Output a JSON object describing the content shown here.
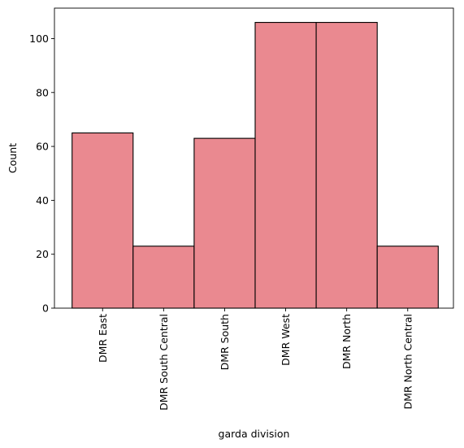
{
  "chart_data": {
    "type": "bar",
    "categories": [
      "DMR East",
      "DMR South Central",
      "DMR South",
      "DMR West",
      "DMR North",
      "DMR North Central"
    ],
    "values": [
      65,
      23,
      63,
      106,
      106,
      23
    ],
    "xlabel": "garda division",
    "ylabel": "Count",
    "ylim": [
      0,
      111.3
    ],
    "yticks": [
      0,
      20,
      40,
      60,
      80,
      100
    ],
    "grid": false,
    "legend": "none",
    "colors": {
      "bar_fill": "#ea8990",
      "bar_edge": "#000000",
      "axis": "#000000"
    }
  }
}
